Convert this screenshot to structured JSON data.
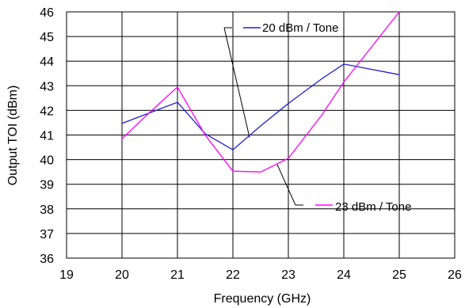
{
  "chart_data": {
    "type": "line",
    "title": "",
    "xlabel": "Frequency (GHz)",
    "ylabel": "Output TOI (dBm)",
    "xlim": [
      19,
      26
    ],
    "ylim": [
      36,
      46
    ],
    "x_ticks": [
      19,
      20,
      21,
      22,
      23,
      24,
      25,
      26
    ],
    "y_ticks": [
      36,
      37,
      38,
      39,
      40,
      41,
      42,
      43,
      44,
      45,
      46
    ],
    "grid": true,
    "series": [
      {
        "name": "20 dBm / Tone",
        "color": "#1f1fcf",
        "points": [
          {
            "x": 20,
            "y": 41.47
          },
          {
            "x": 21,
            "y": 42.33
          },
          {
            "x": 21.5,
            "y": 41.05
          },
          {
            "x": 22,
            "y": 40.4
          },
          {
            "x": 22.5,
            "y": 41.37
          },
          {
            "x": 23,
            "y": 42.28
          },
          {
            "x": 23.6,
            "y": 43.28
          },
          {
            "x": 24,
            "y": 43.88
          },
          {
            "x": 25,
            "y": 43.45
          }
        ]
      },
      {
        "name": "23 dBm / Tone",
        "color": "#ff00ff",
        "points": [
          {
            "x": 20,
            "y": 40.85
          },
          {
            "x": 20.5,
            "y": 41.92
          },
          {
            "x": 21,
            "y": 42.95
          },
          {
            "x": 21.5,
            "y": 41.0
          },
          {
            "x": 22,
            "y": 39.53
          },
          {
            "x": 22.5,
            "y": 39.5
          },
          {
            "x": 23,
            "y": 40.05
          },
          {
            "x": 23.6,
            "y": 41.8
          },
          {
            "x": 24,
            "y": 43.15
          },
          {
            "x": 25,
            "y": 46.0
          }
        ]
      }
    ],
    "annotations": [
      {
        "series": "20 dBm / Tone",
        "text": "20 dBm / Tone",
        "points_to": {
          "x": 22.3,
          "y": 40.9
        }
      },
      {
        "series": "23 dBm / Tone",
        "text": "23 dBm / Tone",
        "points_to": {
          "x": 22.8,
          "y": 39.8
        }
      }
    ]
  }
}
